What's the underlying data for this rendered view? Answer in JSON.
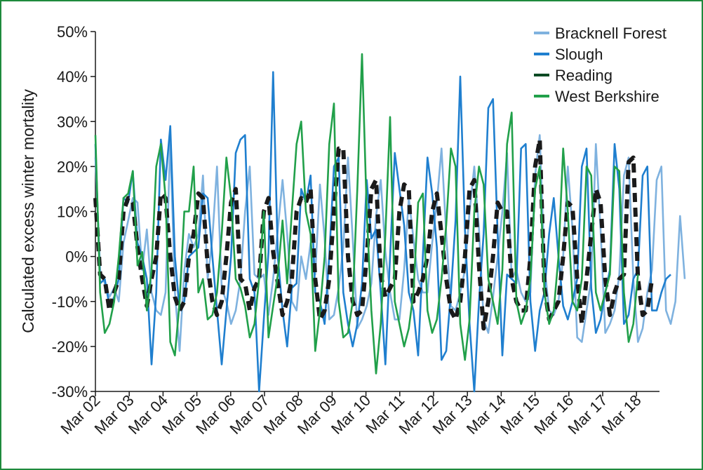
{
  "chart_data": {
    "type": "line",
    "ylabel": "Calculated excess winter mortality",
    "xlabel": "",
    "ylim": [
      -30,
      50
    ],
    "y_ticks": [
      -30,
      -20,
      -10,
      0,
      10,
      20,
      30,
      40,
      50
    ],
    "y_tick_labels": [
      "-30%",
      "-20%",
      "-10%",
      "0%",
      "10%",
      "20%",
      "30%",
      "40%",
      "50%"
    ],
    "x_tick_labels": [
      "Mar 02",
      "Mar 03",
      "Mar 04",
      "Mar 05",
      "Mar 06",
      "Mar 07",
      "Mar 08",
      "Mar 09",
      "Mar 10",
      "Mar 11",
      "Mar 12",
      "Mar 13",
      "Mar 14",
      "Mar 15",
      "Mar 16",
      "Mar 17",
      "Mar 18"
    ],
    "x_start": "Mar 02",
    "legend_position": "top-right",
    "grid": false,
    "series": [
      {
        "name": "Bracknell Forest",
        "color": "#7fb2df",
        "style": "solid",
        "values": [
          22,
          -3,
          -6,
          -9,
          -7,
          -10,
          3,
          8,
          13,
          12,
          -3,
          6,
          -8,
          -12,
          -13,
          -8,
          26,
          -8,
          -21,
          -3,
          5,
          2,
          5,
          18,
          -5,
          4,
          20,
          -7,
          -10,
          -15,
          -12,
          -5,
          10,
          20,
          -4,
          -5,
          -4,
          -13,
          -5,
          6,
          17,
          5,
          -10,
          -12,
          0,
          -5,
          3,
          -4,
          16,
          4,
          -14,
          -13,
          -7,
          2,
          22,
          4,
          -16,
          -14,
          -11,
          -6,
          9,
          17,
          1,
          -8,
          -14,
          -14,
          -3,
          13,
          4,
          -5,
          -8,
          -8,
          3,
          12,
          24,
          5,
          -11,
          -12,
          -8,
          -3,
          10,
          20,
          6,
          -14,
          -17,
          -9,
          0,
          10,
          23,
          -5,
          -3,
          -8,
          -10,
          -8,
          18,
          27,
          -2,
          -12,
          -13,
          -10,
          0,
          20,
          6,
          -18,
          -19,
          -12,
          -5,
          25,
          6,
          -17,
          -15,
          -12,
          -4,
          18,
          22,
          -5,
          -19,
          -16,
          -8,
          -3,
          17,
          20,
          -12,
          -15,
          -10,
          9,
          -5
        ]
      },
      {
        "name": "Slough",
        "color": "#1f7fcf",
        "style": "solid",
        "values": [
          25,
          -6,
          -5,
          -11,
          -9,
          -5,
          13,
          12,
          19,
          3,
          0,
          -5,
          -24,
          -8,
          26,
          17,
          29,
          0,
          -12,
          -10,
          0,
          1,
          2,
          14,
          13,
          0,
          -12,
          -24,
          -12,
          0,
          23,
          26,
          27,
          -5,
          -8,
          -30,
          -14,
          1,
          41,
          0,
          -12,
          -20,
          -7,
          -6,
          15,
          12,
          18,
          -8,
          -10,
          -15,
          0,
          20,
          22,
          -8,
          -15,
          -20,
          -15,
          -6,
          17,
          4,
          6,
          -8,
          -24,
          0,
          23,
          15,
          7,
          -8,
          -12,
          -22,
          0,
          22,
          14,
          2,
          -23,
          -21,
          -8,
          8,
          40,
          6,
          -15,
          -30,
          -10,
          5,
          33,
          35,
          5,
          -22,
          -4,
          -5,
          -6,
          24,
          25,
          -10,
          -21,
          -12,
          -8,
          5,
          13,
          0,
          -11,
          -14,
          -10,
          -5,
          20,
          24,
          -7,
          -17,
          -14,
          -8,
          -3,
          25,
          15,
          -15,
          -13,
          -5,
          -3,
          18,
          20,
          -12,
          -12,
          -8,
          -5,
          -4
        ]
      },
      {
        "name": "Reading",
        "color": "#0b4a23",
        "style": "dashed",
        "values": [
          13,
          -4,
          -5,
          -12,
          -8,
          -5,
          10,
          13,
          12,
          2,
          -5,
          -11,
          -5,
          0,
          14,
          13,
          0,
          -9,
          -12,
          -10,
          0,
          5,
          14,
          13,
          -2,
          -10,
          -13,
          -10,
          0,
          12,
          15,
          -5,
          -6,
          -12,
          -7,
          -5,
          10,
          13,
          1,
          -6,
          -13,
          -10,
          -5,
          10,
          13,
          12,
          15,
          -5,
          -14,
          -12,
          -5,
          10,
          24,
          24,
          0,
          -10,
          -13,
          -12,
          0,
          15,
          17,
          -4,
          -9,
          -7,
          -5,
          10,
          16,
          15,
          -10,
          -8,
          -5,
          0,
          10,
          14,
          5,
          -5,
          -12,
          -14,
          -10,
          0,
          15,
          17,
          -2,
          -16,
          -10,
          0,
          12,
          10,
          10,
          -5,
          -10,
          -12,
          -12,
          0,
          20,
          26,
          -7,
          -14,
          -12,
          -10,
          0,
          12,
          11,
          -5,
          -15,
          -5,
          5,
          15,
          12,
          -5,
          -13,
          -8,
          -5,
          -4,
          21,
          22,
          -5,
          -13,
          -12,
          -5
        ]
      },
      {
        "name": "West Berkshire",
        "color": "#21a04a",
        "style": "solid",
        "values": [
          27,
          -8,
          -17,
          -15,
          -10,
          0,
          13,
          14,
          19,
          -2,
          1,
          -12,
          -3,
          20,
          25,
          13,
          -19,
          -22,
          -10,
          10,
          10,
          20,
          -8,
          -5,
          -14,
          -13,
          -8,
          5,
          22,
          13,
          -5,
          -7,
          -11,
          -18,
          -15,
          -5,
          10,
          -18,
          -11,
          -4,
          8,
          -6,
          10,
          25,
          30,
          10,
          5,
          -21,
          -12,
          0,
          25,
          34,
          -10,
          -18,
          -17,
          -10,
          15,
          45,
          10,
          -12,
          -26,
          -15,
          5,
          31,
          -10,
          -15,
          -20,
          -16,
          -8,
          12,
          14,
          -12,
          -17,
          -14,
          -5,
          7,
          24,
          20,
          -15,
          -23,
          -14,
          10,
          20,
          16,
          -5,
          -10,
          -15,
          -3,
          25,
          32,
          -10,
          -15,
          -12,
          -5,
          15,
          20,
          -8,
          -15,
          -12,
          0,
          24,
          10,
          -10,
          -12,
          -5,
          20,
          18,
          -8,
          -12,
          -8,
          -4,
          20,
          19,
          -8,
          -19,
          -15,
          -4
        ]
      }
    ]
  }
}
